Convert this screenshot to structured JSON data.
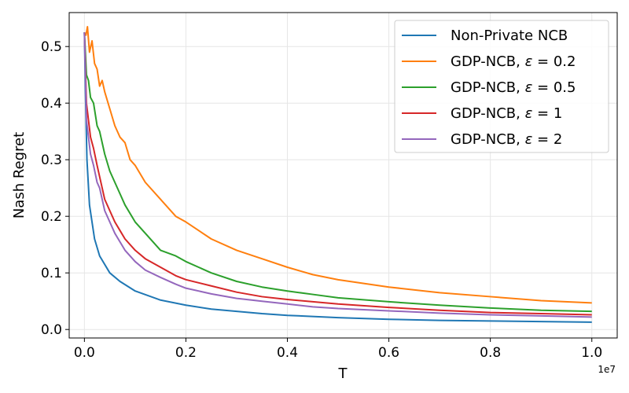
{
  "chart_data": {
    "type": "line",
    "xlabel": "T",
    "ylabel": "Nash Regret",
    "x_offset_label": "1e7",
    "xlim": [
      -0.03,
      1.05
    ],
    "ylim": [
      -0.015,
      0.56
    ],
    "grid": true,
    "legend_position": "top-right",
    "xticks": [
      0.0,
      0.2,
      0.4,
      0.6,
      0.8,
      1.0
    ],
    "xtick_labels": [
      "0.0",
      "0.2",
      "0.4",
      "0.6",
      "0.8",
      "1.0"
    ],
    "yticks": [
      0.0,
      0.1,
      0.2,
      0.3,
      0.4,
      0.5
    ],
    "ytick_labels": [
      "0.0",
      "0.1",
      "0.2",
      "0.3",
      "0.4",
      "0.5"
    ],
    "series": [
      {
        "name": "Non-Private NCB",
        "legend_main": "Non-Private NCB",
        "legend_symbol": "",
        "legend_tail": "",
        "color": "#1f77b4",
        "points": [
          [
            0.0,
            0.525
          ],
          [
            0.002,
            0.42
          ],
          [
            0.005,
            0.3
          ],
          [
            0.01,
            0.22
          ],
          [
            0.02,
            0.16
          ],
          [
            0.03,
            0.13
          ],
          [
            0.05,
            0.1
          ],
          [
            0.07,
            0.085
          ],
          [
            0.1,
            0.068
          ],
          [
            0.15,
            0.052
          ],
          [
            0.2,
            0.043
          ],
          [
            0.25,
            0.036
          ],
          [
            0.3,
            0.032
          ],
          [
            0.35,
            0.028
          ],
          [
            0.4,
            0.025
          ],
          [
            0.5,
            0.021
          ],
          [
            0.6,
            0.018
          ],
          [
            0.7,
            0.016
          ],
          [
            0.8,
            0.015
          ],
          [
            0.9,
            0.014
          ],
          [
            1.0,
            0.013
          ]
        ]
      },
      {
        "name": "GDP-NCB, ε = 0.2",
        "legend_main": "GDP-NCB, ",
        "legend_symbol": "ε",
        "legend_tail": " = 0.2",
        "color": "#ff7f0e",
        "points": [
          [
            0.0,
            0.525
          ],
          [
            0.003,
            0.52
          ],
          [
            0.006,
            0.535
          ],
          [
            0.01,
            0.49
          ],
          [
            0.015,
            0.51
          ],
          [
            0.02,
            0.47
          ],
          [
            0.025,
            0.46
          ],
          [
            0.03,
            0.43
          ],
          [
            0.035,
            0.44
          ],
          [
            0.04,
            0.42
          ],
          [
            0.05,
            0.39
          ],
          [
            0.06,
            0.36
          ],
          [
            0.07,
            0.34
          ],
          [
            0.08,
            0.33
          ],
          [
            0.09,
            0.3
          ],
          [
            0.1,
            0.29
          ],
          [
            0.12,
            0.26
          ],
          [
            0.15,
            0.23
          ],
          [
            0.18,
            0.2
          ],
          [
            0.2,
            0.19
          ],
          [
            0.25,
            0.16
          ],
          [
            0.3,
            0.14
          ],
          [
            0.35,
            0.125
          ],
          [
            0.4,
            0.11
          ],
          [
            0.45,
            0.097
          ],
          [
            0.5,
            0.088
          ],
          [
            0.6,
            0.075
          ],
          [
            0.7,
            0.065
          ],
          [
            0.8,
            0.058
          ],
          [
            0.9,
            0.051
          ],
          [
            1.0,
            0.047
          ]
        ]
      },
      {
        "name": "GDP-NCB, ε = 0.5",
        "legend_main": "GDP-NCB, ",
        "legend_symbol": "ε",
        "legend_tail": " = 0.5",
        "color": "#2ca02c",
        "points": [
          [
            0.0,
            0.525
          ],
          [
            0.004,
            0.45
          ],
          [
            0.008,
            0.44
          ],
          [
            0.012,
            0.41
          ],
          [
            0.018,
            0.4
          ],
          [
            0.025,
            0.36
          ],
          [
            0.03,
            0.35
          ],
          [
            0.035,
            0.33
          ],
          [
            0.04,
            0.31
          ],
          [
            0.05,
            0.28
          ],
          [
            0.06,
            0.26
          ],
          [
            0.07,
            0.24
          ],
          [
            0.08,
            0.22
          ],
          [
            0.1,
            0.19
          ],
          [
            0.12,
            0.17
          ],
          [
            0.15,
            0.14
          ],
          [
            0.18,
            0.13
          ],
          [
            0.2,
            0.12
          ],
          [
            0.25,
            0.1
          ],
          [
            0.3,
            0.085
          ],
          [
            0.35,
            0.075
          ],
          [
            0.4,
            0.068
          ],
          [
            0.45,
            0.062
          ],
          [
            0.5,
            0.056
          ],
          [
            0.6,
            0.049
          ],
          [
            0.7,
            0.043
          ],
          [
            0.8,
            0.038
          ],
          [
            0.9,
            0.034
          ],
          [
            1.0,
            0.032
          ]
        ]
      },
      {
        "name": "GDP-NCB, ε = 1",
        "legend_main": "GDP-NCB, ",
        "legend_symbol": "ε",
        "legend_tail": " = 1",
        "color": "#d62728",
        "points": [
          [
            0.0,
            0.525
          ],
          [
            0.004,
            0.4
          ],
          [
            0.008,
            0.37
          ],
          [
            0.012,
            0.34
          ],
          [
            0.018,
            0.32
          ],
          [
            0.025,
            0.29
          ],
          [
            0.03,
            0.27
          ],
          [
            0.035,
            0.25
          ],
          [
            0.04,
            0.23
          ],
          [
            0.05,
            0.21
          ],
          [
            0.06,
            0.19
          ],
          [
            0.07,
            0.175
          ],
          [
            0.08,
            0.16
          ],
          [
            0.1,
            0.14
          ],
          [
            0.12,
            0.125
          ],
          [
            0.15,
            0.11
          ],
          [
            0.18,
            0.095
          ],
          [
            0.2,
            0.088
          ],
          [
            0.25,
            0.077
          ],
          [
            0.3,
            0.066
          ],
          [
            0.35,
            0.058
          ],
          [
            0.4,
            0.053
          ],
          [
            0.45,
            0.049
          ],
          [
            0.5,
            0.045
          ],
          [
            0.6,
            0.039
          ],
          [
            0.7,
            0.034
          ],
          [
            0.8,
            0.03
          ],
          [
            0.9,
            0.028
          ],
          [
            1.0,
            0.026
          ]
        ]
      },
      {
        "name": "GDP-NCB, ε = 2",
        "legend_main": "GDP-NCB, ",
        "legend_symbol": "ε",
        "legend_tail": " = 2",
        "color": "#9467bd",
        "points": [
          [
            0.0,
            0.525
          ],
          [
            0.004,
            0.37
          ],
          [
            0.008,
            0.34
          ],
          [
            0.012,
            0.31
          ],
          [
            0.018,
            0.29
          ],
          [
            0.025,
            0.26
          ],
          [
            0.03,
            0.25
          ],
          [
            0.035,
            0.23
          ],
          [
            0.04,
            0.21
          ],
          [
            0.05,
            0.19
          ],
          [
            0.06,
            0.17
          ],
          [
            0.07,
            0.155
          ],
          [
            0.08,
            0.14
          ],
          [
            0.1,
            0.12
          ],
          [
            0.12,
            0.105
          ],
          [
            0.15,
            0.092
          ],
          [
            0.18,
            0.08
          ],
          [
            0.2,
            0.073
          ],
          [
            0.25,
            0.063
          ],
          [
            0.3,
            0.055
          ],
          [
            0.35,
            0.05
          ],
          [
            0.4,
            0.045
          ],
          [
            0.45,
            0.04
          ],
          [
            0.5,
            0.037
          ],
          [
            0.6,
            0.033
          ],
          [
            0.7,
            0.029
          ],
          [
            0.8,
            0.026
          ],
          [
            0.9,
            0.024
          ],
          [
            1.0,
            0.022
          ]
        ]
      }
    ]
  }
}
